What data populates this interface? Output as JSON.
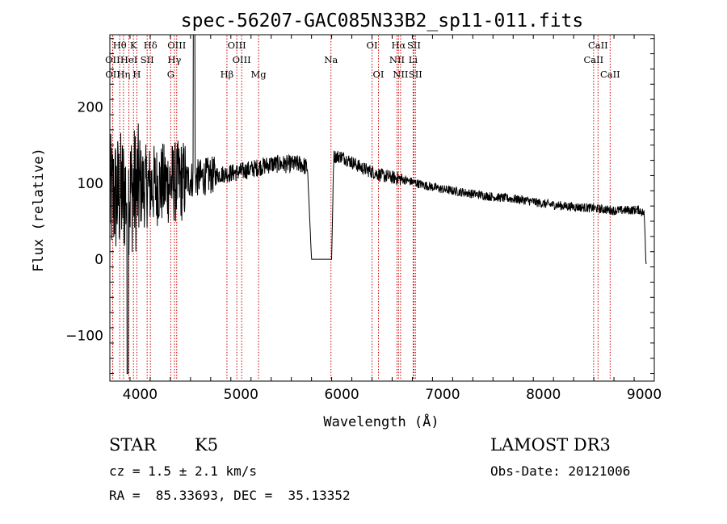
{
  "chart_data": {
    "type": "line",
    "title": "spec-56207-GAC085N33B2_sp11-011.fits",
    "xlabel": "Wavelength (Å)",
    "ylabel": "Flux (relative)",
    "xlim": [
      3700,
      9100
    ],
    "ylim": [
      -160,
      295
    ],
    "xticks": [
      4000,
      5000,
      6000,
      7000,
      8000,
      9000
    ],
    "xtick_labels": [
      "4000",
      "5000",
      "6000",
      "7000",
      "8000",
      "9000"
    ],
    "yticks": [
      -100,
      0,
      100,
      200
    ],
    "ytick_labels": [
      "−100",
      "0",
      "100",
      "200"
    ],
    "spectrum_anchors": {
      "x": [
        3700,
        3800,
        4000,
        4300,
        4500,
        4700,
        5000,
        5300,
        5600,
        5660,
        5700,
        5900,
        5920,
        6000,
        6200,
        6400,
        6600,
        6800,
        7000,
        7200,
        7500,
        7800,
        8000,
        8200,
        8500,
        8700,
        8950,
        9000,
        9020
      ],
      "y": [
        80,
        85,
        95,
        100,
        105,
        110,
        115,
        125,
        125,
        120,
        0,
        0,
        135,
        135,
        120,
        110,
        105,
        98,
        92,
        88,
        82,
        78,
        73,
        70,
        67,
        64,
        65,
        60,
        -10
      ]
    },
    "spectral_lines": [
      {
        "name": "Hθ",
        "wavelength": 3798,
        "row": 0
      },
      {
        "name": "K",
        "wavelength": 3934,
        "row": 0
      },
      {
        "name": "Hδ",
        "wavelength": 4102,
        "row": 0
      },
      {
        "name": "OIII",
        "wavelength": 4363,
        "row": 0
      },
      {
        "name": "OIII",
        "wavelength": 4959,
        "row": 0
      },
      {
        "name": "OI",
        "wavelength": 6300,
        "row": 0
      },
      {
        "name": "Hα",
        "wavelength": 6563,
        "row": 0
      },
      {
        "name": "SII",
        "wavelength": 6716,
        "row": 0
      },
      {
        "name": "CaII",
        "wavelength": 8542,
        "row": 0
      },
      {
        "name": "OII",
        "wavelength": 3727,
        "row": 1
      },
      {
        "name": "HeI",
        "wavelength": 3889,
        "row": 1
      },
      {
        "name": "SII",
        "wavelength": 4070,
        "row": 1
      },
      {
        "name": "Hγ",
        "wavelength": 4340,
        "row": 1
      },
      {
        "name": "OIII",
        "wavelength": 5007,
        "row": 1
      },
      {
        "name": "Na",
        "wavelength": 5893,
        "row": 1
      },
      {
        "name": "NII",
        "wavelength": 6548,
        "row": 1
      },
      {
        "name": "Li",
        "wavelength": 6708,
        "row": 1
      },
      {
        "name": "CaII",
        "wavelength": 8498,
        "row": 1
      },
      {
        "name": "OII",
        "wavelength": 3729,
        "row": 2
      },
      {
        "name": "Hη",
        "wavelength": 3835,
        "row": 2
      },
      {
        "name": "H",
        "wavelength": 3968,
        "row": 2
      },
      {
        "name": "G",
        "wavelength": 4304,
        "row": 2
      },
      {
        "name": "Hβ",
        "wavelength": 4861,
        "row": 2
      },
      {
        "name": "Mg",
        "wavelength": 5175,
        "row": 2
      },
      {
        "name": "OI",
        "wavelength": 6364,
        "row": 2
      },
      {
        "name": "NII",
        "wavelength": 6583,
        "row": 2
      },
      {
        "name": "SII",
        "wavelength": 6731,
        "row": 2
      },
      {
        "name": "CaII",
        "wavelength": 8662,
        "row": 2
      }
    ],
    "line_color": "#000000",
    "marker_color": "#cc0000"
  },
  "info": {
    "object_class": "STAR",
    "subclass": "K5",
    "survey": "LAMOST DR3",
    "cz": "cz = 1.5 ± 2.1 km/s",
    "obs_date": "Obs-Date: 20121006",
    "coords": "RA =  85.33693, DEC =  35.13352"
  }
}
